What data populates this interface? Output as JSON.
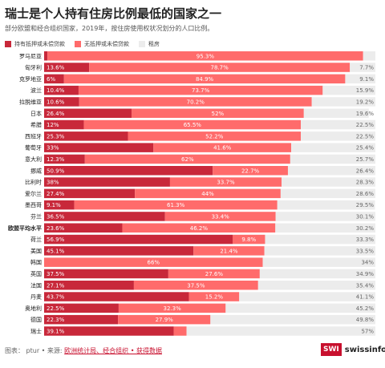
{
  "title": "瑞士是个人持有住房比例最低的国家之一",
  "subtitle": "部分欧盟和经合组织国家，2019年，按住房使用权状况划分的人口比例。",
  "colors": {
    "owned_with_mortgage": "#c8283a",
    "owned_no_mortgage": "#ff6b6b",
    "rent": "#ececec",
    "text_on_bar": "#ffffff",
    "text_outside": "#666666"
  },
  "legend": [
    {
      "label": "持有抵押或未偿贷款",
      "color_key": "owned_with_mortgage"
    },
    {
      "label": "无抵押或未偿贷款",
      "color_key": "owned_no_mortgage"
    },
    {
      "label": "租房",
      "color_key": "rent"
    }
  ],
  "chart_data": {
    "type": "bar",
    "orientation": "horizontal",
    "stacked": true,
    "xlim": [
      0,
      100
    ],
    "categories": [
      "罗马尼亚",
      "匈牙利",
      "克罗地亚",
      "波兰",
      "拉脱维亚",
      "日本",
      "希腊",
      "西班牙",
      "葡萄牙",
      "意大利",
      "挪威",
      "比利时",
      "爱尔兰",
      "墨西哥",
      "芬兰",
      "欧盟平均水平",
      "荷兰",
      "美国",
      "韩国",
      "英国",
      "法国",
      "丹麦",
      "奥地利",
      "德国",
      "瑞士"
    ],
    "series": [
      {
        "name": "持有抵押或未偿贷款",
        "color_key": "owned_with_mortgage",
        "labels": [
          "",
          "13.6%",
          "6%",
          "10.4%",
          "10.6%",
          "26.4%",
          "12%",
          "25.3%",
          "33%",
          "12.3%",
          "50.9%",
          "38%",
          "27.4%",
          "9.1%",
          "36.5%",
          "23.6%",
          "56.9%",
          "45.1%",
          "",
          "37.5%",
          "27.1%",
          "43.7%",
          "22.5%",
          "22.3%",
          "39.1%"
        ],
        "values": [
          1,
          13.6,
          6,
          10.4,
          10.6,
          26.4,
          12,
          25.3,
          33,
          12.3,
          50.9,
          38,
          27.4,
          9.1,
          36.5,
          23.6,
          56.9,
          45.1,
          0,
          37.5,
          27.1,
          43.7,
          22.5,
          22.3,
          39.1
        ]
      },
      {
        "name": "无抵押或未偿贷款",
        "color_key": "owned_no_mortgage",
        "labels": [
          "95.3%",
          "78.7%",
          "84.9%",
          "73.7%",
          "70.2%",
          "52%",
          "65.5%",
          "52.2%",
          "41.6%",
          "62%",
          "22.7%",
          "33.7%",
          "44%",
          "61.3%",
          "33.4%",
          "46.2%",
          "9.8%",
          "21.4%",
          "66%",
          "27.6%",
          "37.5%",
          "15.2%",
          "32.3%",
          "27.9%",
          ""
        ],
        "values": [
          95.3,
          78.7,
          84.9,
          73.7,
          70.2,
          52,
          65.5,
          52.2,
          41.6,
          62,
          22.7,
          33.7,
          44,
          61.3,
          33.4,
          46.2,
          9.8,
          21.4,
          66,
          27.6,
          37.5,
          15.2,
          32.3,
          27.9,
          3.9
        ]
      },
      {
        "name": "租房",
        "color_key": "rent",
        "labels": [
          "",
          "7.7%",
          "9.1%",
          "15.9%",
          "19.2%",
          "19.6%",
          "22.5%",
          "22.5%",
          "25.4%",
          "25.7%",
          "26.4%",
          "28.3%",
          "28.6%",
          "29.5%",
          "30.1%",
          "30.2%",
          "33.3%",
          "33.5%",
          "34%",
          "34.9%",
          "35.4%",
          "41.1%",
          "45.2%",
          "49.8%",
          "57%"
        ],
        "values": [
          3.7,
          7.7,
          9.1,
          15.9,
          19.2,
          19.6,
          22.5,
          22.5,
          25.4,
          25.7,
          26.4,
          28.3,
          28.6,
          29.5,
          30.1,
          30.2,
          33.3,
          33.5,
          34,
          34.9,
          35.4,
          41.1,
          45.2,
          49.8,
          57
        ]
      }
    ],
    "highlight_category": "欧盟平均水平"
  },
  "footer": {
    "prefix": "图表： ptur • 来源: ",
    "source": "欧洲统计局、经合组织 • 获得数据"
  },
  "logo": {
    "box": "SWI",
    "text": "swissinfo.ch"
  }
}
